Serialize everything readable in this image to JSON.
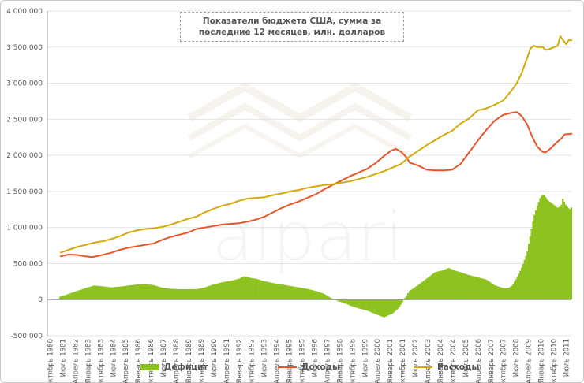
{
  "chart_data": {
    "type": "area",
    "title_lines": [
      "Показатели бюджета США, сумма за",
      "последние 12 месяцев, млн. долларов"
    ],
    "ylim": [
      -500000,
      4000000
    ],
    "yticks": [
      -500000,
      0,
      500000,
      1000000,
      1500000,
      2000000,
      2500000,
      3000000,
      3500000,
      4000000
    ],
    "ytick_labels": [
      "-500 000",
      "0",
      "500 000",
      "1 000 000",
      "1 500 000",
      "2 000 000",
      "2 500 000",
      "3 000 000",
      "3 500 000",
      "4 000 000"
    ],
    "xticks": [
      "Октябрь 1980",
      "Июль 1981",
      "Апрель 1982",
      "Январь 1983",
      "Октябрь 1983",
      "Июль 1984",
      "Апрель 1985",
      "Январь 1986",
      "Октябрь 1986",
      "Июль 1987",
      "Апрель 1988",
      "Январь 1989",
      "Октябрь 1989",
      "Июль 1990",
      "Апрель 1991",
      "Январь 1992",
      "Октябрь 1992",
      "Июль 1993",
      "Апрель 1994",
      "Январь 1995",
      "Октябрь 1995",
      "Июль 1996",
      "Апрель 1997",
      "Январь 1998",
      "Октябрь 1998",
      "Июль 1999",
      "Апрель 2000",
      "Январь 2001",
      "Октябрь 2001",
      "Июль 2002",
      "Апрель 2003",
      "Январь 2004",
      "Октябрь 2004",
      "Июль 2005",
      "Апрель 2006",
      "Январь 2007",
      "Октябрь 2007",
      "Июль 2008",
      "Апрель 2009",
      "Январь 2010",
      "Октябрь 2010",
      "Июль 2011"
    ],
    "x_range": [
      "1980-10",
      "2011-07"
    ],
    "grid": true,
    "legend_position": "bottom",
    "watermark": "alpari",
    "series": [
      {
        "name": "Дефицит",
        "kind": "bar",
        "color": "#8dc21f",
        "points": [
          [
            1981.5,
            40000
          ],
          [
            1982.0,
            80000
          ],
          [
            1982.5,
            120000
          ],
          [
            1983.0,
            160000
          ],
          [
            1983.5,
            195000
          ],
          [
            1984.0,
            185000
          ],
          [
            1984.5,
            170000
          ],
          [
            1985.0,
            180000
          ],
          [
            1985.5,
            195000
          ],
          [
            1986.0,
            210000
          ],
          [
            1986.5,
            215000
          ],
          [
            1987.0,
            200000
          ],
          [
            1987.5,
            165000
          ],
          [
            1988.0,
            150000
          ],
          [
            1988.5,
            145000
          ],
          [
            1989.0,
            145000
          ],
          [
            1989.5,
            145000
          ],
          [
            1990.0,
            170000
          ],
          [
            1990.5,
            210000
          ],
          [
            1991.0,
            240000
          ],
          [
            1991.5,
            260000
          ],
          [
            1992.0,
            290000
          ],
          [
            1992.3,
            325000
          ],
          [
            1992.7,
            300000
          ],
          [
            1993.0,
            290000
          ],
          [
            1993.5,
            255000
          ],
          [
            1994.0,
            230000
          ],
          [
            1994.5,
            210000
          ],
          [
            1995.0,
            190000
          ],
          [
            1995.5,
            170000
          ],
          [
            1996.0,
            150000
          ],
          [
            1996.5,
            120000
          ],
          [
            1997.0,
            80000
          ],
          [
            1997.4,
            20000
          ],
          [
            1997.8,
            -20000
          ],
          [
            1998.2,
            -50000
          ],
          [
            1998.6,
            -90000
          ],
          [
            1999.0,
            -120000
          ],
          [
            1999.5,
            -150000
          ],
          [
            2000.0,
            -200000
          ],
          [
            2000.5,
            -245000
          ],
          [
            2001.0,
            -195000
          ],
          [
            2001.4,
            -110000
          ],
          [
            2001.7,
            10000
          ],
          [
            2002.0,
            120000
          ],
          [
            2002.5,
            200000
          ],
          [
            2003.0,
            290000
          ],
          [
            2003.5,
            380000
          ],
          [
            2004.0,
            410000
          ],
          [
            2004.3,
            440000
          ],
          [
            2004.7,
            400000
          ],
          [
            2005.0,
            380000
          ],
          [
            2005.5,
            340000
          ],
          [
            2006.0,
            310000
          ],
          [
            2006.5,
            280000
          ],
          [
            2007.0,
            200000
          ],
          [
            2007.5,
            160000
          ],
          [
            2007.8,
            160000
          ],
          [
            2008.0,
            190000
          ],
          [
            2008.3,
            300000
          ],
          [
            2008.6,
            450000
          ],
          [
            2008.9,
            650000
          ],
          [
            2009.1,
            900000
          ],
          [
            2009.3,
            1150000
          ],
          [
            2009.5,
            1300000
          ],
          [
            2009.7,
            1430000
          ],
          [
            2009.9,
            1460000
          ],
          [
            2010.1,
            1380000
          ],
          [
            2010.4,
            1330000
          ],
          [
            2010.7,
            1270000
          ],
          [
            2010.9,
            1300000
          ],
          [
            2011.0,
            1400000
          ],
          [
            2011.2,
            1300000
          ],
          [
            2011.4,
            1250000
          ],
          [
            2011.55,
            1290000
          ]
        ]
      },
      {
        "name": "Доходы",
        "kind": "line",
        "color": "#e8562a",
        "points": [
          [
            1981.5,
            600000
          ],
          [
            1982.0,
            625000
          ],
          [
            1982.5,
            620000
          ],
          [
            1983.0,
            600000
          ],
          [
            1983.4,
            590000
          ],
          [
            1983.8,
            610000
          ],
          [
            1984.5,
            650000
          ],
          [
            1985.0,
            690000
          ],
          [
            1985.5,
            720000
          ],
          [
            1986.0,
            740000
          ],
          [
            1986.5,
            760000
          ],
          [
            1987.0,
            780000
          ],
          [
            1987.5,
            830000
          ],
          [
            1988.0,
            870000
          ],
          [
            1988.5,
            900000
          ],
          [
            1989.0,
            930000
          ],
          [
            1989.5,
            980000
          ],
          [
            1990.0,
            1000000
          ],
          [
            1990.5,
            1020000
          ],
          [
            1991.0,
            1040000
          ],
          [
            1991.5,
            1050000
          ],
          [
            1992.0,
            1060000
          ],
          [
            1992.5,
            1080000
          ],
          [
            1993.0,
            1110000
          ],
          [
            1993.5,
            1150000
          ],
          [
            1994.0,
            1210000
          ],
          [
            1994.5,
            1270000
          ],
          [
            1995.0,
            1320000
          ],
          [
            1995.5,
            1360000
          ],
          [
            1996.0,
            1410000
          ],
          [
            1996.5,
            1460000
          ],
          [
            1997.0,
            1530000
          ],
          [
            1997.5,
            1590000
          ],
          [
            1998.0,
            1650000
          ],
          [
            1998.5,
            1710000
          ],
          [
            1999.0,
            1760000
          ],
          [
            1999.5,
            1810000
          ],
          [
            2000.0,
            1890000
          ],
          [
            2000.5,
            1990000
          ],
          [
            2000.9,
            2060000
          ],
          [
            2001.2,
            2090000
          ],
          [
            2001.5,
            2050000
          ],
          [
            2001.8,
            1980000
          ],
          [
            2002.0,
            1900000
          ],
          [
            2002.5,
            1860000
          ],
          [
            2003.0,
            1800000
          ],
          [
            2003.5,
            1790000
          ],
          [
            2004.0,
            1790000
          ],
          [
            2004.5,
            1800000
          ],
          [
            2005.0,
            1880000
          ],
          [
            2005.5,
            2040000
          ],
          [
            2006.0,
            2200000
          ],
          [
            2006.5,
            2350000
          ],
          [
            2007.0,
            2480000
          ],
          [
            2007.5,
            2560000
          ],
          [
            2008.0,
            2590000
          ],
          [
            2008.3,
            2600000
          ],
          [
            2008.6,
            2540000
          ],
          [
            2008.9,
            2430000
          ],
          [
            2009.2,
            2260000
          ],
          [
            2009.5,
            2120000
          ],
          [
            2009.8,
            2050000
          ],
          [
            2010.0,
            2040000
          ],
          [
            2010.3,
            2100000
          ],
          [
            2010.6,
            2170000
          ],
          [
            2010.9,
            2230000
          ],
          [
            2011.1,
            2290000
          ],
          [
            2011.55,
            2300000
          ]
        ]
      },
      {
        "name": "Расходы",
        "kind": "line",
        "color": "#d4a90a",
        "points": [
          [
            1981.5,
            650000
          ],
          [
            1982.0,
            690000
          ],
          [
            1982.5,
            730000
          ],
          [
            1983.0,
            760000
          ],
          [
            1983.5,
            790000
          ],
          [
            1984.0,
            810000
          ],
          [
            1984.5,
            840000
          ],
          [
            1985.0,
            880000
          ],
          [
            1985.5,
            930000
          ],
          [
            1986.0,
            960000
          ],
          [
            1986.5,
            980000
          ],
          [
            1987.0,
            990000
          ],
          [
            1987.5,
            1010000
          ],
          [
            1988.0,
            1040000
          ],
          [
            1988.5,
            1080000
          ],
          [
            1989.0,
            1120000
          ],
          [
            1989.5,
            1150000
          ],
          [
            1990.0,
            1210000
          ],
          [
            1990.5,
            1260000
          ],
          [
            1991.0,
            1300000
          ],
          [
            1991.5,
            1330000
          ],
          [
            1992.0,
            1370000
          ],
          [
            1992.5,
            1400000
          ],
          [
            1993.0,
            1410000
          ],
          [
            1993.5,
            1420000
          ],
          [
            1994.0,
            1450000
          ],
          [
            1994.5,
            1470000
          ],
          [
            1995.0,
            1500000
          ],
          [
            1995.5,
            1520000
          ],
          [
            1996.0,
            1550000
          ],
          [
            1996.5,
            1570000
          ],
          [
            1997.0,
            1590000
          ],
          [
            1997.5,
            1600000
          ],
          [
            1998.0,
            1620000
          ],
          [
            1998.5,
            1640000
          ],
          [
            1999.0,
            1670000
          ],
          [
            1999.5,
            1700000
          ],
          [
            2000.0,
            1740000
          ],
          [
            2000.5,
            1780000
          ],
          [
            2001.0,
            1830000
          ],
          [
            2001.5,
            1880000
          ],
          [
            2002.0,
            1980000
          ],
          [
            2002.5,
            2060000
          ],
          [
            2003.0,
            2140000
          ],
          [
            2003.5,
            2210000
          ],
          [
            2004.0,
            2280000
          ],
          [
            2004.5,
            2340000
          ],
          [
            2005.0,
            2440000
          ],
          [
            2005.5,
            2510000
          ],
          [
            2006.0,
            2620000
          ],
          [
            2006.5,
            2650000
          ],
          [
            2007.0,
            2700000
          ],
          [
            2007.5,
            2760000
          ],
          [
            2008.0,
            2900000
          ],
          [
            2008.3,
            3000000
          ],
          [
            2008.6,
            3150000
          ],
          [
            2008.9,
            3350000
          ],
          [
            2009.1,
            3480000
          ],
          [
            2009.3,
            3520000
          ],
          [
            2009.5,
            3500000
          ],
          [
            2009.8,
            3500000
          ],
          [
            2010.0,
            3460000
          ],
          [
            2010.2,
            3470000
          ],
          [
            2010.5,
            3500000
          ],
          [
            2010.7,
            3520000
          ],
          [
            2010.85,
            3650000
          ],
          [
            2011.0,
            3600000
          ],
          [
            2011.2,
            3540000
          ],
          [
            2011.35,
            3600000
          ],
          [
            2011.55,
            3590000
          ]
        ]
      }
    ]
  }
}
